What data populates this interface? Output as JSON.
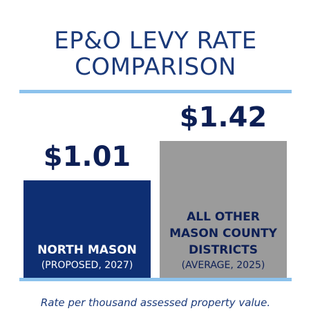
{
  "chart_data": {
    "type": "bar",
    "title_lines": [
      "EP&O LEVY RATE",
      "COMPARISON"
    ],
    "categories": [
      {
        "name": "NORTH MASON",
        "subtitle": "(PROPOSED, 2027)",
        "value": 1.01,
        "value_label": "$1.01",
        "color": "#0e2f73"
      },
      {
        "name_lines": [
          "ALL OTHER",
          "MASON COUNTY",
          "DISTRICTS"
        ],
        "subtitle": "(AVERAGE, 2025)",
        "value": 1.42,
        "value_label": "$1.42",
        "color": "#9b9b9b"
      }
    ],
    "ylim": [
      0,
      1.42
    ],
    "grid": false,
    "footnote": "Rate per thousand assessed property value.",
    "accent_color": "#8cc2ec",
    "title_color": "#1b3a7a"
  }
}
